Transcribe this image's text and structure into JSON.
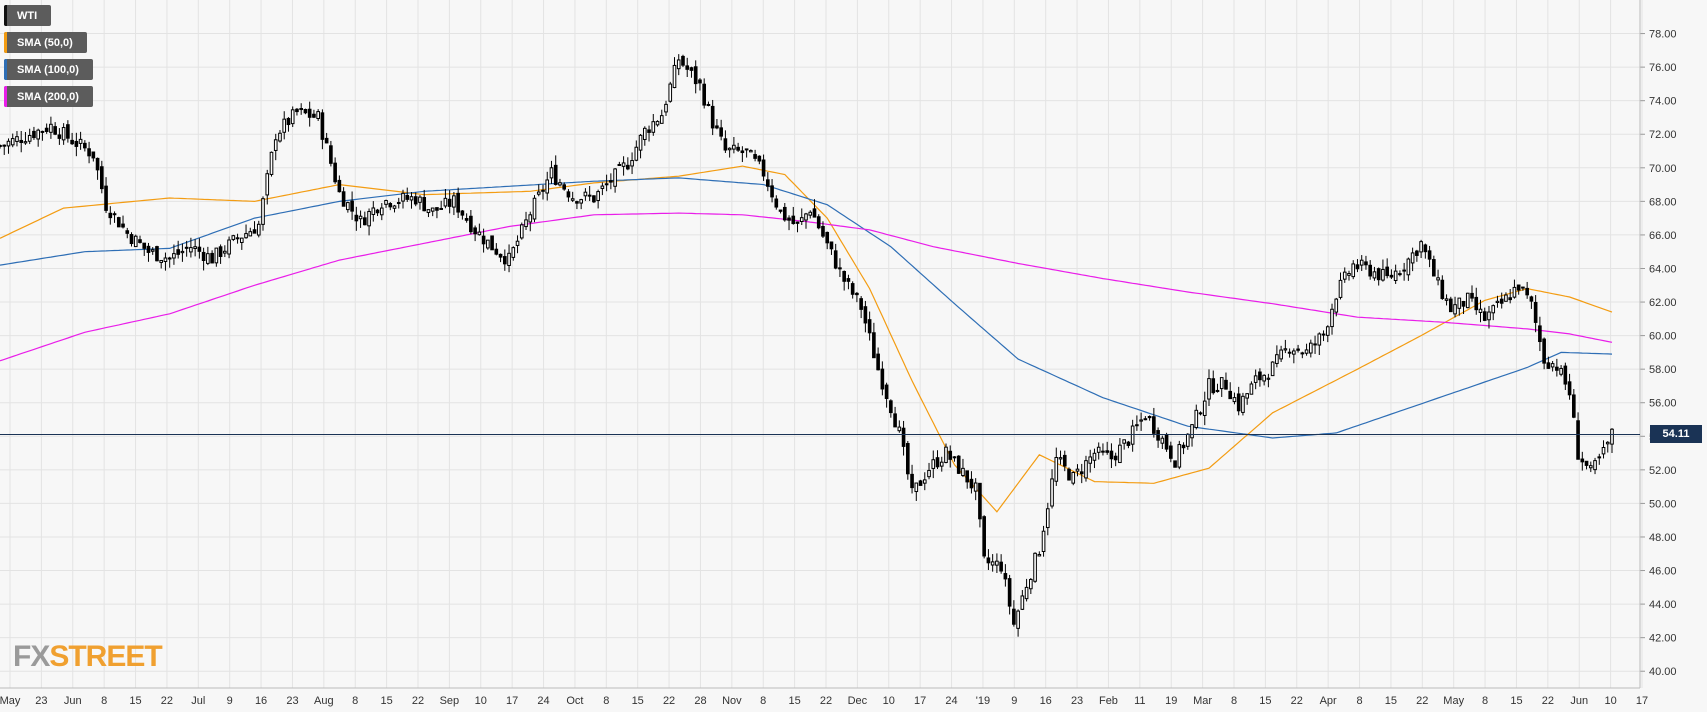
{
  "legend": [
    {
      "label": "WTI",
      "color": "#111111"
    },
    {
      "label": "SMA (50,0)",
      "color": "#f39c12"
    },
    {
      "label": "SMA (100,0)",
      "color": "#2e6eb5"
    },
    {
      "label": "SMA (200,0)",
      "color": "#e91ee9"
    }
  ],
  "logo": {
    "fx": "FX",
    "street": "STREET"
  },
  "current_price_label": "54.11",
  "colors": {
    "up": "#ffffff",
    "down": "#000000",
    "grid": "#e3e3e3",
    "axis_text": "#333333",
    "price_line": "#1a3355"
  },
  "chart_data": {
    "type": "candlestick",
    "title": "",
    "ylim": [
      39,
      80
    ],
    "y_ticks": [
      "40.00",
      "42.00",
      "44.00",
      "46.00",
      "48.00",
      "50.00",
      "52.00",
      "54.00",
      "56.00",
      "58.00",
      "60.00",
      "62.00",
      "64.00",
      "66.00",
      "68.00",
      "70.00",
      "72.00",
      "74.00",
      "76.00",
      "78.00"
    ],
    "x_ticks": [
      "May",
      "23",
      "Jun",
      "8",
      "15",
      "22",
      "Jul",
      "9",
      "16",
      "23",
      "Aug",
      "8",
      "15",
      "22",
      "Sep",
      "10",
      "17",
      "24",
      "Oct",
      "8",
      "15",
      "22",
      "28",
      "Nov",
      "8",
      "15",
      "22",
      "Dec",
      "10",
      "17",
      "24",
      "'19",
      "9",
      "16",
      "23",
      "Feb",
      "11",
      "19",
      "Mar",
      "8",
      "15",
      "22",
      "Apr",
      "8",
      "15",
      "22",
      "May",
      "8",
      "15",
      "22",
      "Jun",
      "10",
      "17"
    ],
    "current_price": 54.11,
    "close_path": [
      [
        0,
        71.3
      ],
      [
        12,
        72.5
      ],
      [
        22,
        70.8
      ],
      [
        25,
        67.8
      ],
      [
        30,
        66.1
      ],
      [
        35,
        65.0
      ],
      [
        40,
        64.6
      ],
      [
        45,
        65.3
      ],
      [
        50,
        64.6
      ],
      [
        56,
        65.8
      ],
      [
        61,
        66.6
      ],
      [
        65,
        72.0
      ],
      [
        70,
        73.3
      ],
      [
        75,
        73.0
      ],
      [
        80,
        68.5
      ],
      [
        85,
        66.8
      ],
      [
        90,
        68.0
      ],
      [
        98,
        68.2
      ],
      [
        102,
        67.4
      ],
      [
        107,
        68.0
      ],
      [
        112,
        66.3
      ],
      [
        116,
        65.3
      ],
      [
        120,
        64.5
      ],
      [
        125,
        67.3
      ],
      [
        130,
        69.7
      ],
      [
        135,
        68.3
      ],
      [
        140,
        68.2
      ],
      [
        145,
        69.5
      ],
      [
        148,
        70.3
      ],
      [
        152,
        72.2
      ],
      [
        156,
        73.2
      ],
      [
        160,
        76.5
      ],
      [
        165,
        74.9
      ],
      [
        168,
        72.7
      ],
      [
        171,
        71.0
      ],
      [
        176,
        70.9
      ],
      [
        180,
        69.7
      ],
      [
        184,
        67.3
      ],
      [
        188,
        66.5
      ],
      [
        191,
        67.6
      ],
      [
        195,
        65.4
      ],
      [
        199,
        63.3
      ],
      [
        203,
        61.7
      ],
      [
        207,
        58.0
      ],
      [
        210,
        55.8
      ],
      [
        212,
        54.2
      ],
      [
        215,
        50.5
      ],
      [
        219,
        52.1
      ],
      [
        223,
        53.0
      ],
      [
        227,
        51.8
      ],
      [
        230,
        50.8
      ],
      [
        232,
        46.5
      ],
      [
        236,
        46.3
      ],
      [
        239,
        42.8
      ],
      [
        242,
        45.2
      ],
      [
        245,
        47.3
      ],
      [
        249,
        52.6
      ],
      [
        253,
        51.5
      ],
      [
        258,
        53.0
      ],
      [
        262,
        52.7
      ],
      [
        266,
        53.8
      ],
      [
        270,
        55.3
      ],
      [
        273,
        54.2
      ],
      [
        277,
        52.6
      ],
      [
        281,
        54.5
      ],
      [
        285,
        57.0
      ],
      [
        289,
        57.1
      ],
      [
        292,
        55.8
      ],
      [
        296,
        57.3
      ],
      [
        300,
        58.1
      ],
      [
        304,
        59.4
      ],
      [
        308,
        59.0
      ],
      [
        312,
        60.1
      ],
      [
        315,
        62.5
      ],
      [
        319,
        64.2
      ],
      [
        323,
        63.9
      ],
      [
        327,
        63.4
      ],
      [
        331,
        64.2
      ],
      [
        335,
        65.5
      ],
      [
        339,
        63.0
      ],
      [
        342,
        61.6
      ],
      [
        346,
        62.1
      ],
      [
        350,
        61.0
      ],
      [
        354,
        61.9
      ],
      [
        358,
        63.0
      ],
      [
        361,
        61.8
      ],
      [
        364,
        58.6
      ],
      [
        367,
        58.2
      ],
      [
        370,
        56.6
      ],
      [
        372,
        53.0
      ],
      [
        375,
        51.8
      ],
      [
        378,
        53.0
      ],
      [
        380,
        54.1
      ]
    ],
    "series": [
      {
        "name": "WTI",
        "type": "candlestick",
        "color": "#111111"
      },
      {
        "name": "SMA (50,0)",
        "color": "#f39c12",
        "points": [
          [
            0,
            65.8
          ],
          [
            15,
            67.6
          ],
          [
            40,
            68.2
          ],
          [
            60,
            68.0
          ],
          [
            80,
            69.0
          ],
          [
            100,
            68.4
          ],
          [
            125,
            68.6
          ],
          [
            140,
            69.1
          ],
          [
            160,
            69.5
          ],
          [
            175,
            70.1
          ],
          [
            185,
            69.6
          ],
          [
            195,
            67.0
          ],
          [
            205,
            62.8
          ],
          [
            215,
            57.3
          ],
          [
            225,
            52.3
          ],
          [
            235,
            49.5
          ],
          [
            245,
            52.9
          ],
          [
            258,
            51.3
          ],
          [
            272,
            51.2
          ],
          [
            285,
            52.1
          ],
          [
            300,
            55.4
          ],
          [
            320,
            58.0
          ],
          [
            335,
            60.0
          ],
          [
            350,
            62.1
          ],
          [
            360,
            62.8
          ],
          [
            370,
            62.3
          ],
          [
            380,
            61.4
          ]
        ]
      },
      {
        "name": "SMA (100,0)",
        "color": "#2e6eb5",
        "points": [
          [
            0,
            64.2
          ],
          [
            20,
            65.0
          ],
          [
            40,
            65.2
          ],
          [
            60,
            67.0
          ],
          [
            80,
            68.0
          ],
          [
            100,
            68.6
          ],
          [
            120,
            68.9
          ],
          [
            140,
            69.2
          ],
          [
            160,
            69.4
          ],
          [
            180,
            69.0
          ],
          [
            195,
            67.8
          ],
          [
            210,
            65.3
          ],
          [
            225,
            61.9
          ],
          [
            240,
            58.6
          ],
          [
            260,
            56.3
          ],
          [
            280,
            54.6
          ],
          [
            300,
            53.9
          ],
          [
            315,
            54.2
          ],
          [
            330,
            55.5
          ],
          [
            345,
            56.8
          ],
          [
            360,
            58.1
          ],
          [
            368,
            59.0
          ],
          [
            380,
            58.9
          ]
        ]
      },
      {
        "name": "SMA (200,0)",
        "color": "#e91ee9",
        "points": [
          [
            0,
            58.5
          ],
          [
            20,
            60.2
          ],
          [
            40,
            61.3
          ],
          [
            60,
            63.0
          ],
          [
            80,
            64.5
          ],
          [
            100,
            65.5
          ],
          [
            120,
            66.5
          ],
          [
            140,
            67.2
          ],
          [
            160,
            67.3
          ],
          [
            175,
            67.2
          ],
          [
            190,
            66.8
          ],
          [
            205,
            66.3
          ],
          [
            220,
            65.3
          ],
          [
            240,
            64.3
          ],
          [
            260,
            63.4
          ],
          [
            280,
            62.6
          ],
          [
            300,
            61.9
          ],
          [
            320,
            61.1
          ],
          [
            340,
            60.8
          ],
          [
            360,
            60.4
          ],
          [
            370,
            60.1
          ],
          [
            380,
            59.6
          ]
        ]
      }
    ]
  }
}
